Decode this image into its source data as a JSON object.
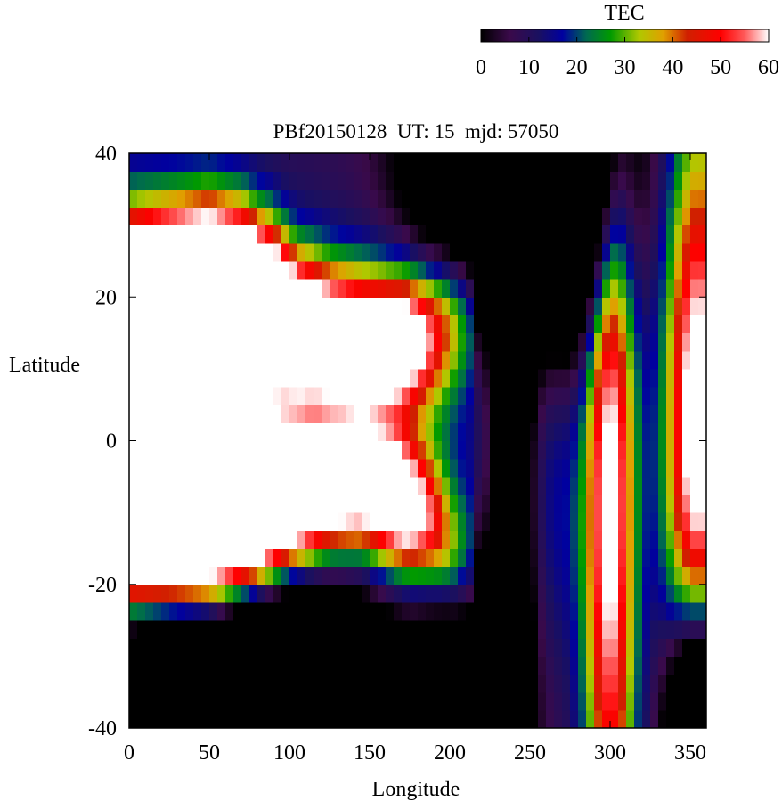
{
  "chart_data": {
    "type": "heatmap",
    "title": "PBf20150128  UT: 15  mjd: 57050",
    "xlabel": "Longitude",
    "ylabel": "Latitude",
    "xlim": [
      0,
      360
    ],
    "ylim": [
      -40,
      40
    ],
    "x_ticks": [
      0,
      50,
      100,
      150,
      200,
      250,
      300,
      350
    ],
    "y_ticks": [
      -40,
      -20,
      0,
      20,
      40
    ],
    "grid": false,
    "colorbar": {
      "label": "TEC",
      "range": [
        0,
        60
      ],
      "ticks": [
        0,
        10,
        20,
        30,
        40,
        50,
        60
      ],
      "placement": "top-right",
      "colormap": [
        {
          "v": 0,
          "color": "#000000"
        },
        {
          "v": 6,
          "color": "#3a0a4a"
        },
        {
          "v": 12,
          "color": "#1a1060"
        },
        {
          "v": 17,
          "color": "#0000a0"
        },
        {
          "v": 22,
          "color": "#006a50"
        },
        {
          "v": 27,
          "color": "#009a00"
        },
        {
          "v": 33,
          "color": "#b0c800"
        },
        {
          "v": 38,
          "color": "#e0a000"
        },
        {
          "v": 43,
          "color": "#d02000"
        },
        {
          "v": 50,
          "color": "#ff0000"
        },
        {
          "v": 55,
          "color": "#ff5a5a"
        },
        {
          "v": 60,
          "color": "#ffffff"
        }
      ]
    },
    "grid_spec": {
      "lon_step": 5,
      "lat_step": 2.5
    },
    "field_model": {
      "crest_a": [
        {
          "lon": 0,
          "lat": 21
        },
        {
          "lon": 50,
          "lat": 25
        },
        {
          "lon": 70,
          "lat": 24
        },
        {
          "lon": 90,
          "lat": 21
        },
        {
          "lon": 105,
          "lat": 17
        },
        {
          "lon": 125,
          "lat": 15
        },
        {
          "lon": 145,
          "lat": 14
        },
        {
          "lon": 165,
          "lat": 14
        },
        {
          "lon": 185,
          "lat": 15
        },
        {
          "lon": 205,
          "lat": 17
        }
      ],
      "crest_b": [
        {
          "lon": 0,
          "lat": -18
        },
        {
          "lon": 50,
          "lat": -17
        },
        {
          "lon": 75,
          "lat": -14
        },
        {
          "lon": 100,
          "lat": -10
        },
        {
          "lon": 125,
          "lat": -7
        },
        {
          "lon": 145,
          "lat": -6
        },
        {
          "lon": 165,
          "lat": -8
        },
        {
          "lon": 185,
          "lat": -11
        },
        {
          "lon": 205,
          "lat": -16
        }
      ],
      "blob_a": [
        {
          "lon": 0,
          "lat": 10,
          "hw": 110,
          "lw": 13,
          "amp": 72
        },
        {
          "lon": 40,
          "lat": -3,
          "hw": 70,
          "lw": 12,
          "amp": 40
        },
        {
          "lon": 90,
          "lat": 0,
          "hw": 55,
          "lw": 11,
          "amp": 20
        }
      ],
      "blob_b": [
        {
          "lon": 300,
          "lat": -4,
          "hw": 22,
          "lw": 45,
          "amp": 58
        },
        {
          "lon": 355,
          "lat": 2,
          "hw": 28,
          "lw": 28,
          "amp": 62
        }
      ],
      "depletions": [
        {
          "lon": 60,
          "lat": -38,
          "hw": 160,
          "lw": 14,
          "amp": -70
        },
        {
          "lon": 280,
          "lat": 41,
          "hw": 45,
          "lw": 18,
          "amp": -70
        },
        {
          "lon": 210,
          "lat": 34,
          "hw": 70,
          "lw": 14,
          "amp": -30
        },
        {
          "lon": 240,
          "lat": -5,
          "hw": 20,
          "lw": 40,
          "amp": -25
        },
        {
          "lon": 355,
          "lat": -40,
          "hw": 25,
          "lw": 12,
          "amp": -70
        },
        {
          "lon": 205,
          "lat": -30,
          "hw": 35,
          "lw": 15,
          "amp": -18
        }
      ]
    }
  }
}
